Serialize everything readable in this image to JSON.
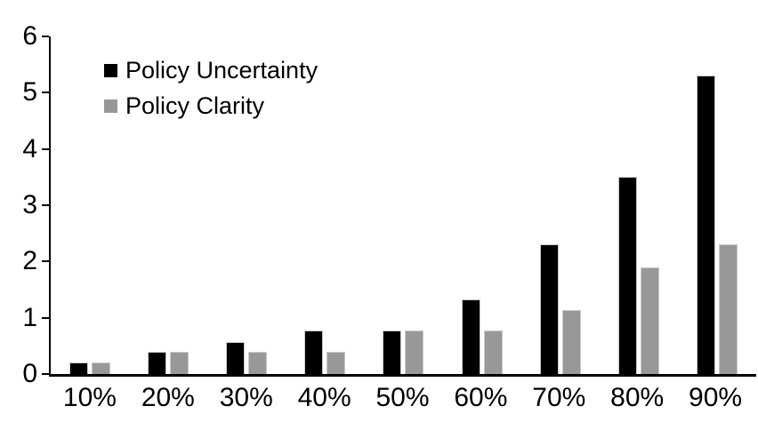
{
  "chart_data": {
    "type": "bar",
    "title": "",
    "xlabel": "",
    "ylabel": "",
    "categories": [
      "10%",
      "20%",
      "30%",
      "40%",
      "50%",
      "60%",
      "70%",
      "80%",
      "90%"
    ],
    "series": [
      {
        "name": "Policy Uncertainty",
        "color": "#000000",
        "values": [
          0.2,
          0.4,
          0.57,
          0.77,
          0.77,
          1.33,
          2.3,
          3.5,
          5.3
        ]
      },
      {
        "name": "Policy Clarity",
        "color": "#989898",
        "values": [
          0.2,
          0.4,
          0.4,
          0.4,
          0.77,
          0.77,
          1.13,
          1.9,
          2.3
        ]
      }
    ],
    "ylim": [
      0,
      6
    ],
    "yticks": [
      0,
      1,
      2,
      3,
      4,
      5,
      6
    ],
    "grid": false,
    "legend_position": "top-left",
    "axis_color": "#000000",
    "bar_outline_color": "#c9c9c9"
  }
}
